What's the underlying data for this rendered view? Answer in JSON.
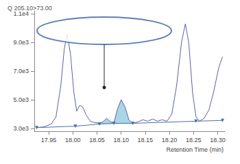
{
  "chart_data": {
    "type": "line",
    "title": "Q 205.10>73.00",
    "x_label": "Retention Time (min)",
    "xlim": [
      17.92,
      18.315
    ],
    "xticks": [
      17.95,
      {
        "value": 18.0,
        "label": "18.00"
      },
      18.05,
      {
        "value": 18.1,
        "label": "18.10"
      },
      18.15,
      {
        "value": 18.2,
        "label": "18.20"
      },
      18.25,
      {
        "value": 18.3,
        "label": "18.30"
      }
    ],
    "ylim": [
      2800,
      11200
    ],
    "yticks": [
      {
        "value": 3000,
        "label": "3.0e3"
      },
      {
        "value": 5000,
        "label": "5.0e3"
      },
      {
        "value": 7000,
        "label": "7.0e3"
      },
      {
        "value": 9000,
        "label": "9.0e3"
      },
      {
        "value": 11000,
        "label": "1.1e4"
      }
    ],
    "grid": false,
    "series": [
      {
        "type": "line",
        "color": "#5b5fa8",
        "x": [
          17.925,
          17.94,
          17.955,
          17.965,
          17.975,
          17.982,
          17.988,
          17.995,
          18.002,
          18.008,
          18.014,
          18.02,
          18.028,
          18.036,
          18.045,
          18.055,
          18.062,
          18.07,
          18.078,
          18.085,
          18.092,
          18.1,
          18.108,
          18.116,
          18.124,
          18.135,
          18.145,
          18.155,
          18.165,
          18.175,
          18.185,
          18.195,
          18.205,
          18.215,
          18.225,
          18.233,
          18.24,
          18.248,
          18.255,
          18.262,
          18.272,
          18.282,
          18.292,
          18.302,
          18.31
        ],
        "values": [
          3050,
          3100,
          3300,
          3800,
          6000,
          8500,
          9600,
          8200,
          5500,
          4200,
          4600,
          4500,
          3900,
          3500,
          3400,
          3350,
          3450,
          3700,
          3450,
          3400,
          4300,
          5000,
          4500,
          3600,
          3350,
          3450,
          3600,
          3500,
          3650,
          3500,
          3600,
          3500,
          4000,
          6000,
          9000,
          10300,
          9000,
          5500,
          3800,
          3500,
          3700,
          4300,
          5600,
          7200,
          8000
        ]
      },
      {
        "type": "baseline",
        "color": "#4a6fa5",
        "marker": "triangle",
        "x": [
          17.925,
          18.005,
          18.055,
          18.085,
          18.124,
          18.255,
          18.31
        ],
        "values": [
          3050,
          3150,
          3300,
          3350,
          3350,
          3500,
          3550
        ]
      }
    ],
    "peaks": [
      {
        "start": 18.055,
        "end": 18.085,
        "baseline": 3300,
        "color": "#a9d6e5"
      },
      {
        "start": 18.085,
        "end": 18.124,
        "baseline": 3350,
        "color": "#a9d6e5"
      }
    ]
  }
}
